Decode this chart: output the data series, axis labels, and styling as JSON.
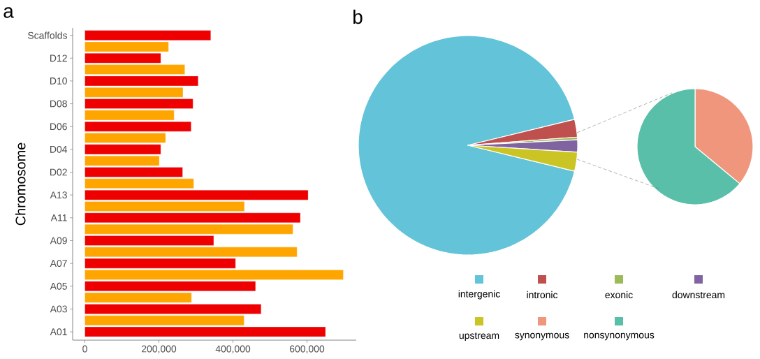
{
  "chart_data": [
    {
      "type": "bar",
      "title": "a",
      "orientation": "horizontal",
      "ylabel": "Chromosome",
      "categories": [
        "Scaffolds",
        null,
        "D12",
        null,
        "D10",
        null,
        "D08",
        null,
        "D06",
        null,
        "D04",
        null,
        "D02",
        null,
        "A13",
        null,
        "A11",
        null,
        "A09",
        null,
        "A07",
        null,
        "A05",
        null,
        "A03",
        null,
        "A01"
      ],
      "values": [
        340000,
        226000,
        205000,
        270000,
        306000,
        265000,
        292000,
        241000,
        287000,
        218000,
        205000,
        201000,
        264000,
        294000,
        603000,
        431000,
        582000,
        562000,
        348000,
        573000,
        407000,
        698000,
        461000,
        288000,
        476000,
        430000,
        650000
      ],
      "colors": [
        "#ee0000",
        "#ffa500",
        "#ee0000",
        "#ffa500",
        "#ee0000",
        "#ffa500",
        "#ee0000",
        "#ffa500",
        "#ee0000",
        "#ffa500",
        "#ee0000",
        "#ffa500",
        "#ee0000",
        "#ffa500",
        "#ee0000",
        "#ffa500",
        "#ee0000",
        "#ffa500",
        "#ee0000",
        "#ffa500",
        "#ee0000",
        "#ffa500",
        "#ee0000",
        "#ffa500",
        "#ee0000",
        "#ffa500",
        "#ee0000"
      ],
      "xlim": [
        -33000,
        733000
      ],
      "xticks": [
        0,
        {
          "value": 200000,
          "label": "200,000"
        },
        {
          "value": 400000,
          "label": "400,000"
        },
        {
          "value": 600000,
          "label": "600,000"
        }
      ],
      "grid": false
    },
    {
      "type": "pie",
      "title": "b",
      "legend": "bottom",
      "categories": [
        "intergenic",
        "intronic",
        "exonic",
        "downstream",
        "upstream"
      ],
      "values": [
        92.4,
        2.6,
        0.4,
        1.8,
        2.8
      ],
      "colors": [
        "#63c3d9",
        "#c0504d",
        "#9bbb59",
        "#8064a2",
        "#cbc425"
      ]
    },
    {
      "type": "pie",
      "legend": "bottom",
      "categories": [
        "synonymous",
        "nonsynonymous"
      ],
      "values": [
        36,
        64
      ],
      "colors": [
        "#f0967d",
        "#5abfa8"
      ]
    }
  ]
}
